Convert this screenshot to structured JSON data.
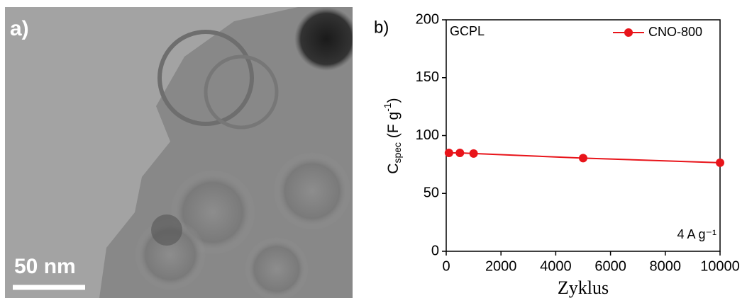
{
  "image_panel": {
    "panel_label": "a)",
    "scale_bar_label": "50 nm"
  },
  "chart_data": {
    "type": "line",
    "panel_label": "b)",
    "x_label": "Zyklus",
    "y_label": {
      "symbol": "C",
      "subscript": "spec",
      "unit": " (F g",
      "superscript": "-1",
      "close": ")"
    },
    "annotations": [
      "GCPL",
      "4 A g⁻¹"
    ],
    "x": [
      100,
      500,
      1000,
      5000,
      10000
    ],
    "series": [
      {
        "name": "CNO-800",
        "color": "#e8141a",
        "values": [
          85,
          85,
          84.5,
          80.5,
          76.5
        ]
      }
    ],
    "xlim": [
      0,
      10000
    ],
    "xticks": [
      0,
      2000,
      4000,
      6000,
      8000,
      10000
    ],
    "ylim": [
      0,
      200
    ],
    "yticks": [
      0,
      50,
      100,
      150,
      200
    ],
    "legend": "top-right"
  }
}
